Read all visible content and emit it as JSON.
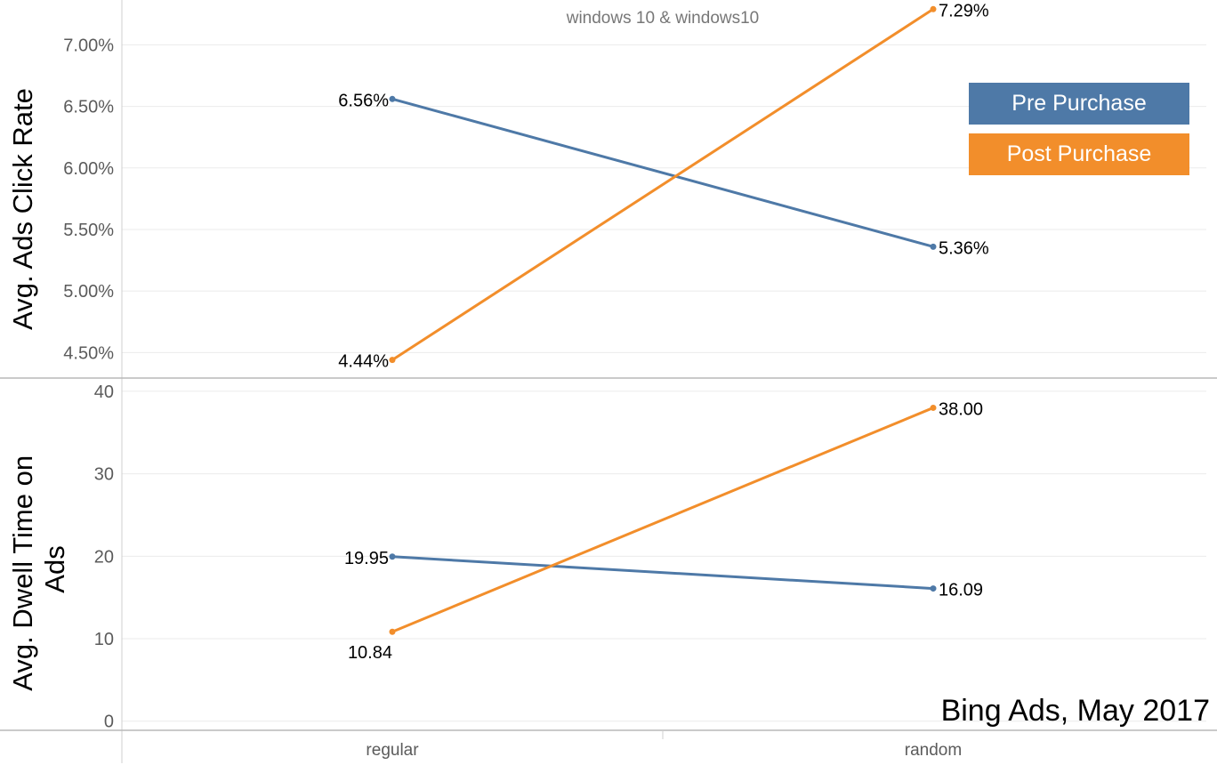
{
  "colors": {
    "pre": "#4e79a7",
    "post": "#f28e2b",
    "axis": "#5b5b5b",
    "grid": "#ebebeb"
  },
  "legend": [
    {
      "label": "Pre Purchase",
      "color": "#4e79a7"
    },
    {
      "label": "Post Purchase",
      "color": "#f28e2b"
    }
  ],
  "source_note": "Bing Ads, May 2017",
  "chart_data": [
    {
      "type": "line",
      "title": "windows 10 & windows10",
      "ylabel": "Avg. Ads Click Rate",
      "categories": [
        "regular",
        "random"
      ],
      "ylim": [
        4.3,
        7.35
      ],
      "yticks": [
        "4.50%",
        "5.00%",
        "5.50%",
        "6.00%",
        "6.50%",
        "7.00%"
      ],
      "grid": true,
      "series": [
        {
          "name": "Pre Purchase",
          "values": [
            6.56,
            5.36
          ],
          "labels": [
            "6.56%",
            "5.36%"
          ]
        },
        {
          "name": "Post Purchase",
          "values": [
            4.44,
            7.29
          ],
          "labels": [
            "4.44%",
            "7.29%"
          ]
        }
      ]
    },
    {
      "type": "line",
      "ylabel": "Avg. Dwell Time on Ads",
      "categories": [
        "regular",
        "random"
      ],
      "ylim": [
        -1,
        41.5
      ],
      "yticks": [
        "0",
        "10",
        "20",
        "30",
        "40"
      ],
      "grid": true,
      "series": [
        {
          "name": "Pre Purchase",
          "values": [
            19.95,
            16.09
          ],
          "labels": [
            "19.95",
            "16.09"
          ]
        },
        {
          "name": "Post Purchase",
          "values": [
            10.84,
            38.0
          ],
          "labels": [
            "10.84",
            "38.00"
          ]
        }
      ]
    }
  ]
}
